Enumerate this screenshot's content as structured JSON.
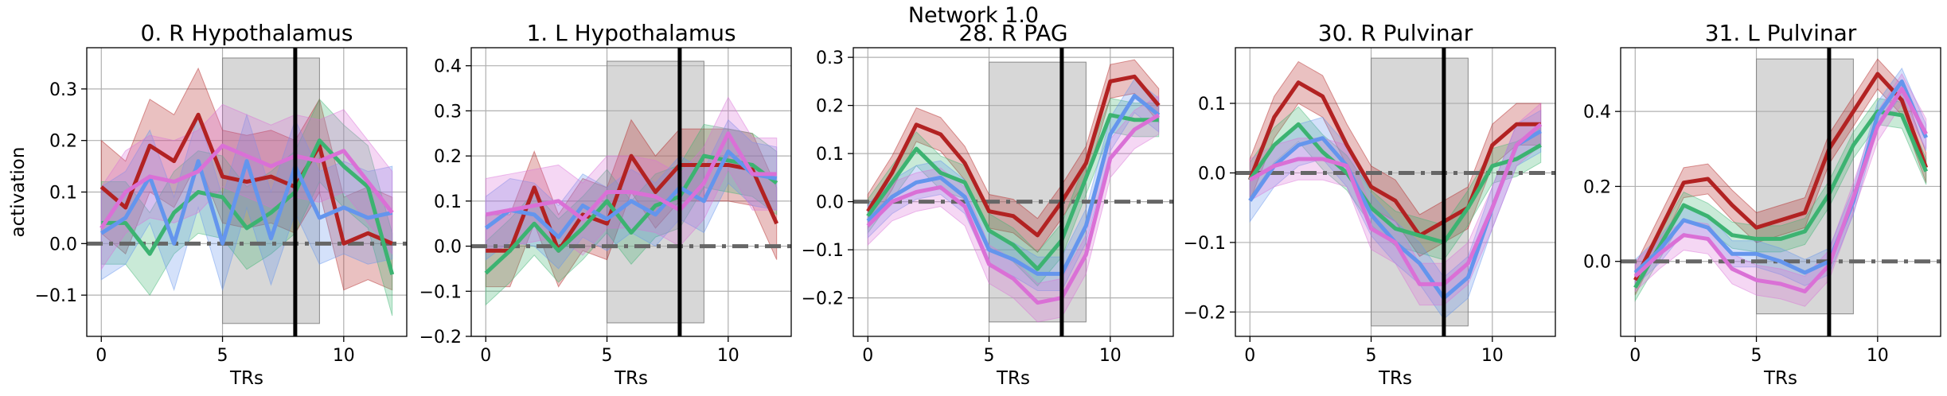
{
  "suptitle": "Network 1.0",
  "colors": {
    "red": "#b22222",
    "green": "#3cb371",
    "blue": "#6495ed",
    "pink": "#da70d6",
    "baseline": "#666666",
    "shade": "#b0b0b0",
    "event": "#000000",
    "grid": "#b0b0b0"
  },
  "chart_data": [
    {
      "type": "line",
      "title": "0. R Hypothalamus",
      "xlabel": "TRs",
      "ylabel": "activation",
      "xlim": [
        -0.6,
        12.6
      ],
      "ylim": [
        -0.18,
        0.38
      ],
      "xticks": [
        0,
        5,
        10
      ],
      "yticks": [
        -0.1,
        0.0,
        0.1,
        0.2,
        0.3
      ],
      "ytick_labels": [
        "−0.1",
        "0.0",
        "0.1",
        "0.2",
        "0.3"
      ],
      "shade": {
        "x0": 5,
        "x1": 9,
        "y0": -0.155,
        "y1": 0.36
      },
      "event_x": 8,
      "baseline_y": 0,
      "grid": true,
      "x": [
        0,
        1,
        2,
        3,
        4,
        5,
        6,
        7,
        8,
        9,
        10,
        11,
        12
      ],
      "series": [
        {
          "color": "red",
          "values": [
            0.11,
            0.07,
            0.19,
            0.16,
            0.25,
            0.13,
            0.12,
            0.13,
            0.11,
            0.19,
            0.0,
            0.02,
            0.0
          ]
        },
        {
          "color": "green",
          "values": [
            0.04,
            0.04,
            -0.02,
            0.06,
            0.1,
            0.09,
            0.03,
            0.06,
            0.1,
            0.2,
            0.15,
            0.11,
            -0.06
          ]
        },
        {
          "color": "blue",
          "values": [
            0.02,
            0.05,
            0.13,
            0.0,
            0.16,
            0.0,
            0.16,
            0.01,
            0.15,
            0.05,
            0.07,
            0.05,
            0.06
          ]
        },
        {
          "color": "pink",
          "values": [
            0.03,
            0.1,
            0.13,
            0.12,
            0.14,
            0.19,
            0.17,
            0.15,
            0.17,
            0.16,
            0.18,
            0.12,
            0.06
          ]
        }
      ],
      "band_halfwidth": [
        0.09,
        0.08,
        0.09,
        0.08
      ]
    },
    {
      "type": "line",
      "title": "1. L Hypothalamus",
      "xlabel": "TRs",
      "ylabel": "",
      "xlim": [
        -0.6,
        12.6
      ],
      "ylim": [
        -0.2,
        0.44
      ],
      "xticks": [
        0,
        5,
        10
      ],
      "yticks": [
        -0.2,
        -0.1,
        0.0,
        0.1,
        0.2,
        0.3,
        0.4
      ],
      "ytick_labels": [
        "−0.2",
        "−0.1",
        "0.0",
        "0.1",
        "0.2",
        "0.3",
        "0.4"
      ],
      "shade": {
        "x0": 5,
        "x1": 9,
        "y0": -0.17,
        "y1": 0.41
      },
      "event_x": 8,
      "baseline_y": 0,
      "grid": true,
      "x": [
        0,
        1,
        2,
        3,
        4,
        5,
        6,
        7,
        8,
        9,
        10,
        11,
        12
      ],
      "series": [
        {
          "color": "red",
          "values": [
            -0.01,
            -0.01,
            0.13,
            -0.01,
            0.07,
            0.05,
            0.2,
            0.12,
            0.18,
            0.18,
            0.18,
            0.17,
            0.05
          ]
        },
        {
          "color": "green",
          "values": [
            -0.06,
            -0.01,
            0.05,
            -0.01,
            0.04,
            0.1,
            0.03,
            0.09,
            0.11,
            0.2,
            0.19,
            0.18,
            0.14
          ]
        },
        {
          "color": "blue",
          "values": [
            0.04,
            0.08,
            0.07,
            0.02,
            0.09,
            0.06,
            0.1,
            0.07,
            0.13,
            0.1,
            0.21,
            0.16,
            0.15
          ]
        },
        {
          "color": "pink",
          "values": [
            0.07,
            0.08,
            0.09,
            0.1,
            0.06,
            0.12,
            0.12,
            0.11,
            0.08,
            0.14,
            0.25,
            0.16,
            0.16
          ]
        }
      ],
      "band_halfwidth": [
        0.08,
        0.07,
        0.07,
        0.08
      ]
    },
    {
      "type": "line",
      "title": "28. R PAG",
      "xlabel": "TRs",
      "ylabel": "",
      "xlim": [
        -0.6,
        12.6
      ],
      "ylim": [
        -0.28,
        0.32
      ],
      "xticks": [
        0,
        5,
        10
      ],
      "yticks": [
        -0.2,
        -0.1,
        0.0,
        0.1,
        0.2,
        0.3
      ],
      "ytick_labels": [
        "−0.2",
        "−0.1",
        "0.0",
        "0.1",
        "0.2",
        "0.3"
      ],
      "shade": {
        "x0": 5,
        "x1": 9,
        "y0": -0.25,
        "y1": 0.29
      },
      "event_x": 8,
      "baseline_y": 0,
      "grid": true,
      "x": [
        0,
        1,
        2,
        3,
        4,
        5,
        6,
        7,
        8,
        9,
        10,
        11,
        12
      ],
      "series": [
        {
          "color": "red",
          "values": [
            -0.02,
            0.06,
            0.16,
            0.14,
            0.08,
            -0.02,
            -0.03,
            -0.07,
            0.0,
            0.08,
            0.25,
            0.26,
            0.2
          ]
        },
        {
          "color": "green",
          "values": [
            -0.03,
            0.04,
            0.11,
            0.06,
            0.04,
            -0.06,
            -0.09,
            -0.14,
            -0.08,
            0.05,
            0.18,
            0.17,
            0.17
          ]
        },
        {
          "color": "blue",
          "values": [
            -0.04,
            0.01,
            0.04,
            0.05,
            0.01,
            -0.1,
            -0.12,
            -0.15,
            -0.15,
            -0.05,
            0.14,
            0.22,
            0.18
          ]
        },
        {
          "color": "pink",
          "values": [
            -0.05,
            0.0,
            0.02,
            0.03,
            -0.01,
            -0.13,
            -0.16,
            -0.21,
            -0.2,
            -0.11,
            0.09,
            0.15,
            0.18
          ]
        }
      ],
      "band_halfwidth": [
        0.035,
        0.035,
        0.035,
        0.04
      ]
    },
    {
      "type": "line",
      "title": "30. R Pulvinar",
      "xlabel": "TRs",
      "ylabel": "",
      "xlim": [
        -0.6,
        12.6
      ],
      "ylim": [
        -0.235,
        0.18
      ],
      "xticks": [
        0,
        5,
        10
      ],
      "yticks": [
        -0.2,
        -0.1,
        0.0,
        0.1
      ],
      "ytick_labels": [
        "−0.2",
        "−0.1",
        "0.0",
        "0.1"
      ],
      "shade": {
        "x0": 5,
        "x1": 9,
        "y0": -0.22,
        "y1": 0.165
      },
      "event_x": 8,
      "baseline_y": 0,
      "grid": true,
      "x": [
        0,
        1,
        2,
        3,
        4,
        5,
        6,
        7,
        8,
        9,
        10,
        11,
        12
      ],
      "series": [
        {
          "color": "red",
          "values": [
            -0.01,
            0.08,
            0.13,
            0.11,
            0.04,
            -0.02,
            -0.04,
            -0.09,
            -0.07,
            -0.05,
            0.04,
            0.07,
            0.07
          ]
        },
        {
          "color": "green",
          "values": [
            -0.01,
            0.04,
            0.07,
            0.03,
            0.0,
            -0.05,
            -0.08,
            -0.09,
            -0.1,
            -0.05,
            0.01,
            0.02,
            0.04
          ]
        },
        {
          "color": "blue",
          "values": [
            -0.04,
            0.01,
            0.04,
            0.05,
            0.01,
            -0.06,
            -0.1,
            -0.13,
            -0.18,
            -0.15,
            -0.05,
            0.04,
            0.06
          ]
        },
        {
          "color": "pink",
          "values": [
            -0.01,
            0.01,
            0.02,
            0.02,
            0.01,
            -0.08,
            -0.1,
            -0.16,
            -0.16,
            -0.13,
            -0.05,
            0.04,
            0.07
          ]
        }
      ],
      "band_halfwidth": [
        0.03,
        0.025,
        0.03,
        0.03
      ]
    },
    {
      "type": "line",
      "title": "31. L Pulvinar",
      "xlabel": "TRs",
      "ylabel": "",
      "xlim": [
        -0.6,
        12.6
      ],
      "ylim": [
        -0.2,
        0.57
      ],
      "xticks": [
        0,
        5,
        10
      ],
      "yticks": [
        0.0,
        0.2,
        0.4
      ],
      "ytick_labels": [
        "0.0",
        "0.2",
        "0.4"
      ],
      "shade": {
        "x0": 5,
        "x1": 9,
        "y0": -0.14,
        "y1": 0.54
      },
      "event_x": 8,
      "baseline_y": 0,
      "grid": true,
      "x": [
        0,
        1,
        2,
        3,
        4,
        5,
        6,
        7,
        8,
        9,
        10,
        11,
        12
      ],
      "series": [
        {
          "color": "red",
          "values": [
            -0.05,
            0.08,
            0.21,
            0.22,
            0.15,
            0.09,
            0.11,
            0.13,
            0.3,
            0.4,
            0.5,
            0.43,
            0.25
          ]
        },
        {
          "color": "green",
          "values": [
            -0.07,
            0.04,
            0.15,
            0.12,
            0.07,
            0.06,
            0.06,
            0.08,
            0.18,
            0.31,
            0.4,
            0.39,
            0.24
          ]
        },
        {
          "color": "blue",
          "values": [
            -0.03,
            0.03,
            0.11,
            0.09,
            0.02,
            0.02,
            0.0,
            -0.03,
            0.0,
            0.16,
            0.39,
            0.48,
            0.33
          ]
        },
        {
          "color": "pink",
          "values": [
            -0.04,
            0.02,
            0.07,
            0.06,
            -0.02,
            -0.05,
            -0.06,
            -0.08,
            -0.01,
            0.17,
            0.36,
            0.46,
            0.34
          ]
        }
      ],
      "band_halfwidth": [
        0.04,
        0.035,
        0.035,
        0.04
      ]
    }
  ]
}
